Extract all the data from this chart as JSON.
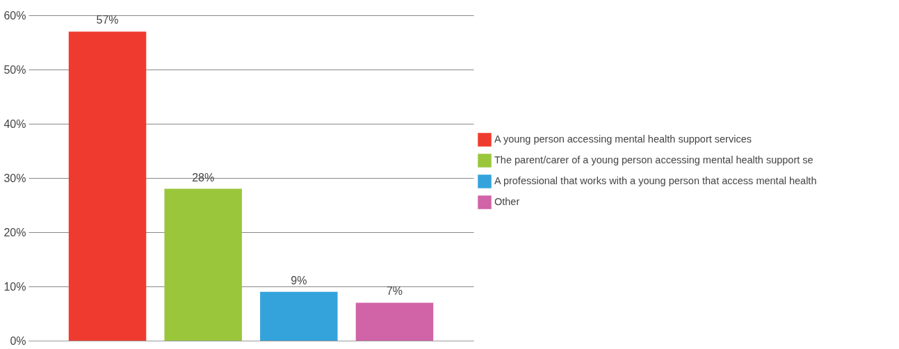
{
  "chart_data": {
    "type": "bar",
    "categories": [
      null,
      null,
      null,
      null
    ],
    "stacked": true,
    "series": [
      {
        "name": "A young person accessing mental health support services",
        "color": "#ef3b2f",
        "values": [
          57,
          null,
          null,
          null
        ],
        "value_labels": [
          "57%",
          null,
          null,
          null
        ]
      },
      {
        "name": "The parent/carer of a young person accessing mental health support se",
        "color": "#9ac63c",
        "values": [
          null,
          28,
          null,
          null
        ],
        "value_labels": [
          null,
          "28%",
          null,
          null
        ]
      },
      {
        "name": "A professional that works with a young person that access mental health",
        "color": "#34a3dc",
        "values": [
          null,
          null,
          9,
          null
        ],
        "value_labels": [
          null,
          null,
          "9%",
          null
        ]
      },
      {
        "name": "Other",
        "color": "#d163a7",
        "values": [
          null,
          null,
          null,
          7
        ],
        "value_labels": [
          null,
          null,
          null,
          "7%"
        ]
      }
    ],
    "ylim": [
      0,
      60
    ],
    "yticks": [
      {
        "value": 0,
        "label": "0%"
      },
      {
        "value": 10,
        "label": "10%"
      },
      {
        "value": 20,
        "label": "20%"
      },
      {
        "value": 30,
        "label": "30%"
      },
      {
        "value": 40,
        "label": "40%"
      },
      {
        "value": 50,
        "label": "50%"
      },
      {
        "value": 60,
        "label": "60%"
      }
    ],
    "grid": "y",
    "legend": "right",
    "tick_labels": "y"
  }
}
